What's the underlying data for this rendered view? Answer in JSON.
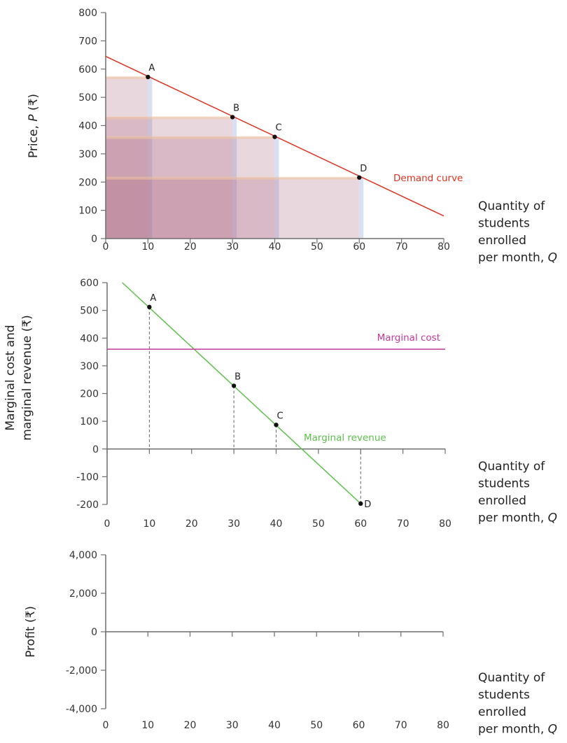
{
  "chart_data": [
    {
      "type": "line",
      "ylabel": "Price, P (₹)",
      "ylabel_parts": [
        "Price, ",
        "P",
        " (₹)"
      ],
      "xlabel_lines": [
        "Quantity of",
        "students",
        "enrolled",
        "per month, Q"
      ],
      "xlim": [
        0,
        80
      ],
      "ylim": [
        0,
        800
      ],
      "xticks": [
        0,
        10,
        20,
        30,
        40,
        50,
        60,
        70,
        80
      ],
      "yticks": [
        0,
        100,
        200,
        300,
        400,
        500,
        600,
        700,
        800
      ],
      "grid": false,
      "series": [
        {
          "name": "Demand curve",
          "color": "#e0311f",
          "x": [
            0,
            80
          ],
          "y": [
            645,
            80
          ]
        }
      ],
      "points": [
        {
          "label": "A",
          "x": 10,
          "y": 572
        },
        {
          "label": "B",
          "x": 30,
          "y": 430
        },
        {
          "label": "C",
          "x": 40,
          "y": 360
        },
        {
          "label": "D",
          "x": 60,
          "y": 216
        }
      ],
      "revenue_rectangles": {
        "fill": "#a8607c",
        "top_band": "#f3c9a3",
        "side_band": "#b9c6ea"
      }
    },
    {
      "type": "line",
      "ylabel_lines": [
        "Marginal cost and",
        "marginal revenue (₹)"
      ],
      "xlabel_lines": [
        "Quantity of",
        "students",
        "enrolled",
        "per month, Q"
      ],
      "xlim": [
        0,
        80
      ],
      "ylim": [
        -200,
        600
      ],
      "xticks": [
        0,
        10,
        20,
        30,
        40,
        50,
        60,
        70,
        80
      ],
      "yticks": [
        -200,
        -100,
        0,
        100,
        200,
        300,
        400,
        500,
        600
      ],
      "grid": false,
      "series": [
        {
          "name": "Marginal revenue",
          "color": "#5cc04a",
          "x": [
            3.6,
            60
          ],
          "y": [
            600,
            -197
          ]
        },
        {
          "name": "Marginal cost",
          "color": "#c2399a",
          "x": [
            0,
            80
          ],
          "y": [
            360,
            360
          ]
        }
      ],
      "points": [
        {
          "label": "A",
          "x": 10,
          "y": 512
        },
        {
          "label": "B",
          "x": 30,
          "y": 228
        },
        {
          "label": "C",
          "x": 40,
          "y": 87
        },
        {
          "label": "D",
          "x": 60,
          "y": -197
        }
      ]
    },
    {
      "type": "line",
      "ylabel": "Profit (₹)",
      "xlabel_lines": [
        "Quantity of",
        "students",
        "enrolled",
        "per month, Q"
      ],
      "xlim": [
        0,
        80
      ],
      "ylim": [
        -4000,
        4000
      ],
      "xticks": [
        0,
        10,
        20,
        30,
        40,
        50,
        60,
        70,
        80
      ],
      "yticks": [
        -4000,
        -2000,
        0,
        2000,
        4000
      ],
      "ytick_labels": [
        "-4,000",
        "-2,000",
        "0",
        "2,000",
        "4,000"
      ],
      "grid": false,
      "series": []
    }
  ]
}
